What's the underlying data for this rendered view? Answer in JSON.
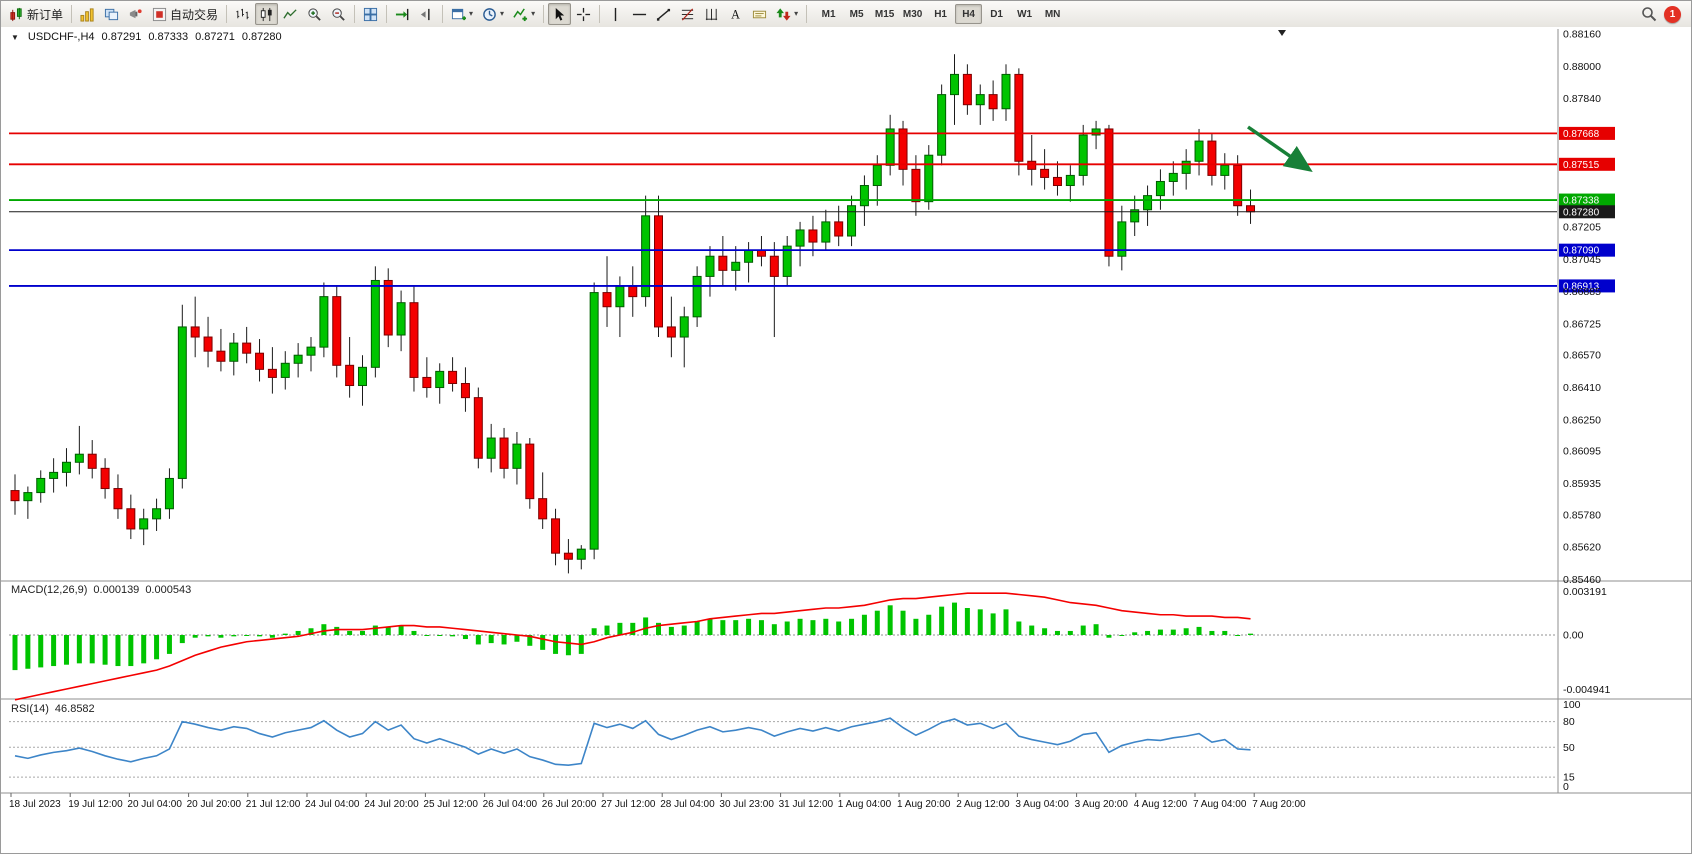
{
  "toolbar": {
    "new_order_label": "新订单",
    "autotrading_label": "自动交易",
    "timeframes": [
      "M1",
      "M5",
      "M15",
      "M30",
      "H1",
      "H4",
      "D1",
      "W1",
      "MN"
    ],
    "active_timeframe": "H4",
    "notification_count": "1"
  },
  "icons": {
    "caret": "▾",
    "one_click": "▼"
  },
  "chart": {
    "symbol_label": "USDCHF-,H4",
    "open": "0.87291",
    "high": "0.87333",
    "low": "0.87271",
    "close": "0.87280"
  },
  "indicators": {
    "macd_label": "MACD(12,26,9)",
    "macd_value": "0.000139",
    "macd_signal_value": "0.000543",
    "macd_axis": {
      "max": "0.003191",
      "zero": "0.00",
      "min": "-0.004941"
    },
    "rsi_label": "RSI(14)",
    "rsi_value": "46.8582",
    "rsi_axis": [
      "100",
      "80",
      "50",
      "15",
      "0"
    ]
  },
  "price_axis_labels": [
    "0.88160",
    "0.88000",
    "0.87840",
    "0.87205",
    "0.87045",
    "0.86885",
    "0.86725",
    "0.86570",
    "0.86410",
    "0.86250",
    "0.86095",
    "0.85935",
    "0.85780",
    "0.85620",
    "0.85460"
  ],
  "level_lines": [
    {
      "price": 0.87668,
      "label": "0.87668",
      "color": "#e60000",
      "type": "resistance"
    },
    {
      "price": 0.87515,
      "label": "0.87515",
      "color": "#e60000",
      "type": "resistance"
    },
    {
      "price": 0.87338,
      "label": "0.87338",
      "color": "#00a800",
      "type": "support"
    },
    {
      "price": 0.8728,
      "label": "0.87280",
      "color": "#1a1a1a",
      "type": "current-price"
    },
    {
      "price": 0.8709,
      "label": "0.87090",
      "color": "#0000cc",
      "type": "support"
    },
    {
      "price": 0.86913,
      "label": "0.86913",
      "color": "#0000cc",
      "type": "support"
    }
  ],
  "time_axis": [
    "18 Jul 2023",
    "19 Jul 12:00",
    "20 Jul 04:00",
    "20 Jul 20:00",
    "21 Jul 12:00",
    "24 Jul 04:00",
    "24 Jul 20:00",
    "25 Jul 12:00",
    "26 Jul 04:00",
    "26 Jul 20:00",
    "27 Jul 12:00",
    "28 Jul 04:00",
    "30 Jul 23:00",
    "31 Jul 12:00",
    "1 Aug 04:00",
    "1 Aug 20:00",
    "2 Aug 12:00",
    "3 Aug 04:00",
    "3 Aug 20:00",
    "4 Aug 12:00",
    "7 Aug 04:00",
    "7 Aug 20:00"
  ],
  "chart_data": {
    "type": "candlestick",
    "symbol": "USDCHF",
    "timeframe": "H4",
    "price_range": [
      0.8546,
      0.8816
    ],
    "candles_ohlc": [
      [
        0.859,
        0.8598,
        0.8578,
        0.8585
      ],
      [
        0.8585,
        0.8592,
        0.8576,
        0.8589
      ],
      [
        0.8589,
        0.86,
        0.8584,
        0.8596
      ],
      [
        0.8596,
        0.8606,
        0.8589,
        0.8599
      ],
      [
        0.8599,
        0.8611,
        0.8592,
        0.8604
      ],
      [
        0.8604,
        0.8622,
        0.8598,
        0.8608
      ],
      [
        0.8608,
        0.8615,
        0.8596,
        0.8601
      ],
      [
        0.8601,
        0.8606,
        0.8586,
        0.8591
      ],
      [
        0.8591,
        0.8598,
        0.8576,
        0.8581
      ],
      [
        0.8581,
        0.8588,
        0.8566,
        0.8571
      ],
      [
        0.8571,
        0.8581,
        0.8563,
        0.8576
      ],
      [
        0.8576,
        0.8586,
        0.857,
        0.8581
      ],
      [
        0.8581,
        0.8601,
        0.8576,
        0.8596
      ],
      [
        0.8596,
        0.8682,
        0.8591,
        0.8671
      ],
      [
        0.8671,
        0.8686,
        0.8656,
        0.8666
      ],
      [
        0.8666,
        0.8676,
        0.8651,
        0.8659
      ],
      [
        0.8659,
        0.867,
        0.8649,
        0.8654
      ],
      [
        0.8654,
        0.8668,
        0.8647,
        0.8663
      ],
      [
        0.8663,
        0.8671,
        0.8653,
        0.8658
      ],
      [
        0.8658,
        0.8665,
        0.8644,
        0.865
      ],
      [
        0.865,
        0.8661,
        0.8638,
        0.8646
      ],
      [
        0.8646,
        0.8659,
        0.864,
        0.8653
      ],
      [
        0.8653,
        0.8663,
        0.8646,
        0.8657
      ],
      [
        0.8657,
        0.8666,
        0.8649,
        0.8661
      ],
      [
        0.8661,
        0.8693,
        0.8656,
        0.8686
      ],
      [
        0.8686,
        0.8691,
        0.8646,
        0.8652
      ],
      [
        0.8652,
        0.8666,
        0.8636,
        0.8642
      ],
      [
        0.8642,
        0.8657,
        0.8632,
        0.8651
      ],
      [
        0.8651,
        0.8701,
        0.8646,
        0.8694
      ],
      [
        0.8694,
        0.87,
        0.8661,
        0.8667
      ],
      [
        0.8667,
        0.8689,
        0.8659,
        0.8683
      ],
      [
        0.8683,
        0.8691,
        0.8639,
        0.8646
      ],
      [
        0.8646,
        0.8656,
        0.8636,
        0.8641
      ],
      [
        0.8641,
        0.8653,
        0.8633,
        0.8649
      ],
      [
        0.8649,
        0.8656,
        0.8639,
        0.8643
      ],
      [
        0.8643,
        0.8651,
        0.8629,
        0.8636
      ],
      [
        0.8636,
        0.8641,
        0.8601,
        0.8606
      ],
      [
        0.8606,
        0.8623,
        0.8599,
        0.8616
      ],
      [
        0.8616,
        0.8621,
        0.8596,
        0.8601
      ],
      [
        0.8601,
        0.8619,
        0.8593,
        0.8613
      ],
      [
        0.8613,
        0.8616,
        0.8581,
        0.8586
      ],
      [
        0.8586,
        0.8599,
        0.8571,
        0.8576
      ],
      [
        0.8576,
        0.8581,
        0.8553,
        0.8559
      ],
      [
        0.8559,
        0.8566,
        0.8549,
        0.8556
      ],
      [
        0.8556,
        0.8563,
        0.8551,
        0.8561
      ],
      [
        0.8561,
        0.8693,
        0.8556,
        0.8688
      ],
      [
        0.8688,
        0.8706,
        0.8671,
        0.8681
      ],
      [
        0.8681,
        0.8696,
        0.8666,
        0.8691
      ],
      [
        0.8691,
        0.8701,
        0.8676,
        0.8686
      ],
      [
        0.8686,
        0.8736,
        0.8681,
        0.8726
      ],
      [
        0.8726,
        0.8736,
        0.8666,
        0.8671
      ],
      [
        0.8671,
        0.8686,
        0.8656,
        0.8666
      ],
      [
        0.8666,
        0.8681,
        0.8651,
        0.8676
      ],
      [
        0.8676,
        0.8701,
        0.8671,
        0.8696
      ],
      [
        0.8696,
        0.8711,
        0.8686,
        0.8706
      ],
      [
        0.8706,
        0.8716,
        0.8691,
        0.8699
      ],
      [
        0.8699,
        0.8711,
        0.8689,
        0.8703
      ],
      [
        0.8703,
        0.8713,
        0.8693,
        0.8709
      ],
      [
        0.8709,
        0.8716,
        0.8701,
        0.8706
      ],
      [
        0.8706,
        0.8713,
        0.8666,
        0.8696
      ],
      [
        0.8696,
        0.8716,
        0.8691,
        0.8711
      ],
      [
        0.8711,
        0.8723,
        0.8701,
        0.8719
      ],
      [
        0.8719,
        0.8726,
        0.8706,
        0.8713
      ],
      [
        0.8713,
        0.8729,
        0.8709,
        0.8723
      ],
      [
        0.8723,
        0.8731,
        0.8711,
        0.8716
      ],
      [
        0.8716,
        0.8736,
        0.8711,
        0.8731
      ],
      [
        0.8731,
        0.8746,
        0.8721,
        0.8741
      ],
      [
        0.8741,
        0.8756,
        0.8731,
        0.8751
      ],
      [
        0.8751,
        0.8776,
        0.8746,
        0.8769
      ],
      [
        0.8769,
        0.8773,
        0.8741,
        0.8749
      ],
      [
        0.8749,
        0.8756,
        0.8726,
        0.8733
      ],
      [
        0.8733,
        0.8761,
        0.8729,
        0.8756
      ],
      [
        0.8756,
        0.8791,
        0.8751,
        0.8786
      ],
      [
        0.8786,
        0.8806,
        0.8771,
        0.8796
      ],
      [
        0.8796,
        0.8801,
        0.8776,
        0.8781
      ],
      [
        0.8781,
        0.8791,
        0.8771,
        0.8786
      ],
      [
        0.8786,
        0.8793,
        0.8773,
        0.8779
      ],
      [
        0.8779,
        0.8801,
        0.8773,
        0.8796
      ],
      [
        0.8796,
        0.8799,
        0.8746,
        0.8753
      ],
      [
        0.8753,
        0.8766,
        0.8741,
        0.8749
      ],
      [
        0.8749,
        0.8759,
        0.8739,
        0.8745
      ],
      [
        0.8745,
        0.8753,
        0.8736,
        0.8741
      ],
      [
        0.8741,
        0.8751,
        0.8733,
        0.8746
      ],
      [
        0.8746,
        0.8771,
        0.8741,
        0.8766
      ],
      [
        0.8766,
        0.8773,
        0.8759,
        0.8769
      ],
      [
        0.8769,
        0.8771,
        0.8701,
        0.8706
      ],
      [
        0.8706,
        0.8731,
        0.8699,
        0.8723
      ],
      [
        0.8723,
        0.8736,
        0.8716,
        0.8729
      ],
      [
        0.8729,
        0.8741,
        0.8721,
        0.8736
      ],
      [
        0.8736,
        0.8749,
        0.8729,
        0.8743
      ],
      [
        0.8743,
        0.8753,
        0.8736,
        0.8747
      ],
      [
        0.8747,
        0.8759,
        0.8739,
        0.8753
      ],
      [
        0.8753,
        0.8769,
        0.8746,
        0.8763
      ],
      [
        0.8763,
        0.8767,
        0.8741,
        0.8746
      ],
      [
        0.8746,
        0.8757,
        0.8739,
        0.8751
      ],
      [
        0.8751,
        0.8756,
        0.8726,
        0.8731
      ],
      [
        0.8731,
        0.8739,
        0.8722,
        0.8728
      ]
    ],
    "macd": {
      "histogram": [
        -0.0026,
        -0.0025,
        -0.0024,
        -0.0023,
        -0.0022,
        -0.0021,
        -0.0021,
        -0.0022,
        -0.0023,
        -0.0023,
        -0.0021,
        -0.0018,
        -0.0014,
        -0.0006,
        -0.0002,
        -0.0001,
        -0.0002,
        -0.0001,
        0.0,
        -0.0001,
        -0.0002,
        0.0001,
        0.0003,
        0.0005,
        0.0008,
        0.0006,
        0.0003,
        0.0003,
        0.0007,
        0.0006,
        0.0007,
        0.0003,
        0.0,
        0.0,
        -0.0001,
        -0.0003,
        -0.0007,
        -0.0006,
        -0.0007,
        -0.0005,
        -0.0008,
        -0.0011,
        -0.0014,
        -0.0015,
        -0.0014,
        0.0005,
        0.0007,
        0.0009,
        0.0009,
        0.0013,
        0.0009,
        0.0006,
        0.0007,
        0.001,
        0.0012,
        0.0011,
        0.0011,
        0.0012,
        0.0011,
        0.0008,
        0.001,
        0.0012,
        0.0011,
        0.0012,
        0.001,
        0.0012,
        0.0015,
        0.0018,
        0.0022,
        0.0018,
        0.0012,
        0.0015,
        0.0021,
        0.0024,
        0.002,
        0.0019,
        0.0016,
        0.0019,
        0.001,
        0.0007,
        0.0005,
        0.0003,
        0.0003,
        0.0007,
        0.0008,
        -0.0002,
        0.0,
        0.0002,
        0.0003,
        0.0004,
        0.0004,
        0.0005,
        0.0006,
        0.0003,
        0.0003,
        0.0,
        0.0001
      ],
      "signal": [
        -0.0048,
        -0.0046,
        -0.0044,
        -0.0042,
        -0.004,
        -0.0038,
        -0.0036,
        -0.0034,
        -0.0032,
        -0.003,
        -0.0028,
        -0.0026,
        -0.0023,
        -0.0019,
        -0.0015,
        -0.0012,
        -0.0009,
        -0.0007,
        -0.0005,
        -0.0004,
        -0.0003,
        -0.0002,
        -0.0001,
        0.0001,
        0.0003,
        0.0004,
        0.0004,
        0.0004,
        0.0005,
        0.0006,
        0.0007,
        0.0007,
        0.0006,
        0.0006,
        0.0005,
        0.0004,
        0.0003,
        0.0002,
        0.0001,
        0.0,
        -0.0001,
        -0.0003,
        -0.0005,
        -0.0006,
        -0.0007,
        -0.0005,
        -0.0002,
        0.0,
        0.0002,
        0.0005,
        0.0007,
        0.0008,
        0.0009,
        0.001,
        0.0012,
        0.0013,
        0.0014,
        0.0015,
        0.0016,
        0.0016,
        0.0017,
        0.0018,
        0.0019,
        0.002,
        0.002,
        0.0021,
        0.0022,
        0.0024,
        0.0026,
        0.0027,
        0.0027,
        0.0028,
        0.0029,
        0.003,
        0.0031,
        0.0031,
        0.0031,
        0.0031,
        0.003,
        0.0029,
        0.0028,
        0.0026,
        0.0024,
        0.0023,
        0.0022,
        0.002,
        0.0018,
        0.0017,
        0.0016,
        0.0015,
        0.0015,
        0.0014,
        0.0014,
        0.0014,
        0.0013,
        0.0013,
        0.0012
      ],
      "range": [
        -0.004941,
        0.003191
      ]
    },
    "rsi": {
      "values": [
        40,
        37,
        41,
        44,
        46,
        49,
        45,
        40,
        36,
        33,
        37,
        40,
        48,
        80,
        77,
        73,
        70,
        74,
        72,
        66,
        62,
        67,
        70,
        73,
        81,
        70,
        62,
        66,
        80,
        70,
        76,
        60,
        55,
        60,
        55,
        50,
        42,
        48,
        43,
        48,
        39,
        35,
        30,
        29,
        31,
        78,
        73,
        77,
        72,
        81,
        65,
        59,
        64,
        70,
        74,
        68,
        70,
        73,
        70,
        63,
        68,
        72,
        69,
        73,
        69,
        74,
        77,
        80,
        84,
        73,
        64,
        71,
        79,
        83,
        76,
        78,
        72,
        78,
        63,
        59,
        56,
        53,
        57,
        65,
        67,
        44,
        52,
        56,
        59,
        58,
        61,
        63,
        66,
        56,
        59,
        48,
        47
      ],
      "levels": [
        80,
        50,
        15
      ],
      "range": [
        0,
        100
      ]
    },
    "annotation_arrow": {
      "direction": "down-right",
      "color": "#188038"
    }
  }
}
